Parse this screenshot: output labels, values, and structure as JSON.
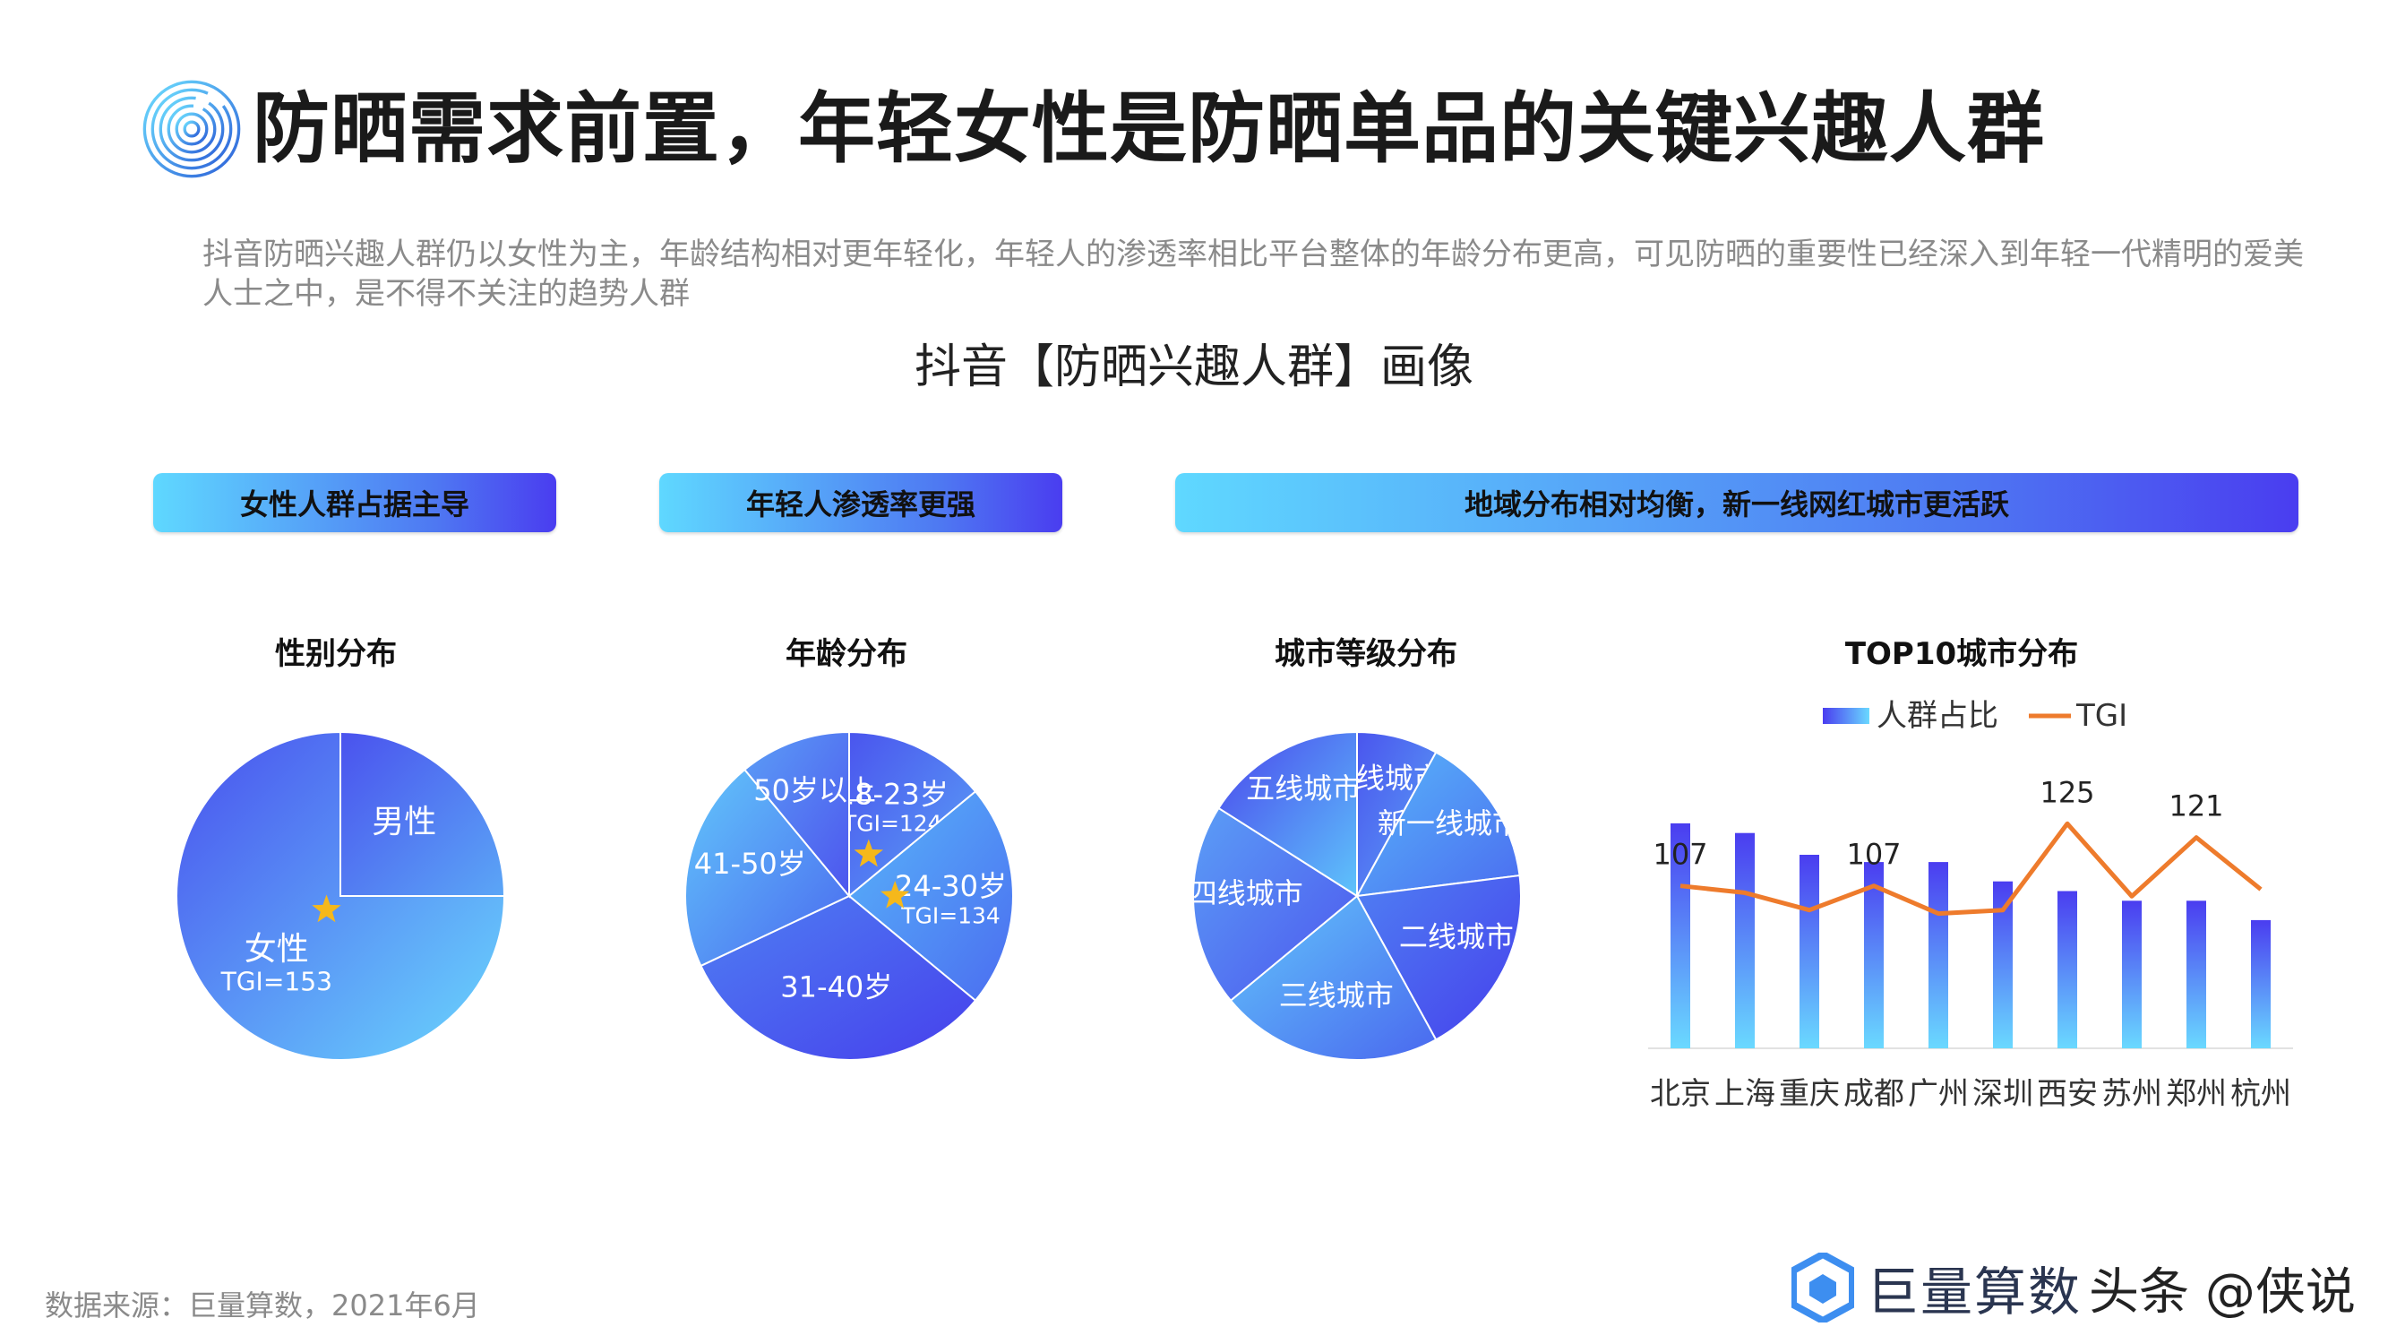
{
  "header": {
    "title": "防晒需求前置，年轻女性是防晒单品的关键兴趣人群",
    "subtitle": "抖音防晒兴趣人群仍以女性为主，年龄结构相对更年轻化，年轻人的渗透率相比平台整体的年龄分布更高，可见防晒的重要性已经深入到年轻一代精明的爱美人士之中，是不得不关注的趋势人群"
  },
  "figure_title": "抖音【防晒兴趣人群】画像",
  "banners": {
    "gender": "女性人群占据主导",
    "age": "年轻人渗透率更强",
    "region": "地域分布相对均衡，新一线网红城市更活跃"
  },
  "colors": {
    "banner_start": "#5fd8ff",
    "banner_end": "#4a3df0",
    "bar_top": "#4a3df0",
    "bar_bottom": "#6ad9ff",
    "tgi_line": "#ee7b2c",
    "star": "#f5b81b"
  },
  "chart_data": [
    {
      "type": "pie",
      "title": "性别分布",
      "slices": [
        {
          "label": "男性",
          "value": 25
        },
        {
          "label": "女性",
          "value": 75,
          "note": "TGI=153",
          "highlight": true
        }
      ]
    },
    {
      "type": "pie",
      "title": "年龄分布",
      "slices": [
        {
          "label": "18-23岁",
          "value": 14,
          "note": "TGI=124",
          "highlight": true
        },
        {
          "label": "24-30岁",
          "value": 22,
          "note": "TGI=134",
          "highlight": true
        },
        {
          "label": "31-40岁",
          "value": 32
        },
        {
          "label": "41-50岁",
          "value": 21
        },
        {
          "label": "50岁以上",
          "value": 11
        }
      ]
    },
    {
      "type": "pie",
      "title": "城市等级分布",
      "slices": [
        {
          "label": "一线城市",
          "value": 8
        },
        {
          "label": "新一线城市",
          "value": 15
        },
        {
          "label": "二线城市",
          "value": 19
        },
        {
          "label": "三线城市",
          "value": 22
        },
        {
          "label": "四线城市",
          "value": 20
        },
        {
          "label": "五线城市",
          "value": 16
        }
      ]
    },
    {
      "type": "bar",
      "title": "TOP10城市分布",
      "categories": [
        "北京",
        "上海",
        "重庆",
        "成都",
        "广州",
        "深圳",
        "西安",
        "苏州",
        "郑州",
        "杭州"
      ],
      "series": [
        {
          "name": "人群占比",
          "type": "bar",
          "values": [
            9.3,
            8.9,
            8.0,
            7.7,
            7.7,
            6.9,
            6.5,
            6.1,
            6.1,
            5.3
          ]
        },
        {
          "name": "TGI",
          "type": "line",
          "values": [
            107,
            105,
            100,
            107,
            99,
            100,
            125,
            104,
            121,
            106
          ]
        }
      ],
      "data_labels": [
        {
          "series": "TGI",
          "index": 0,
          "text": "107"
        },
        {
          "series": "TGI",
          "index": 3,
          "text": "107"
        },
        {
          "series": "TGI",
          "index": 6,
          "text": "125"
        },
        {
          "series": "TGI",
          "index": 8,
          "text": "121"
        }
      ],
      "legend": "top"
    }
  ],
  "footer": {
    "source": "数据来源：巨量算数，2021年6月",
    "brand": "巨量算数",
    "watermark": "头条 @侠说"
  }
}
